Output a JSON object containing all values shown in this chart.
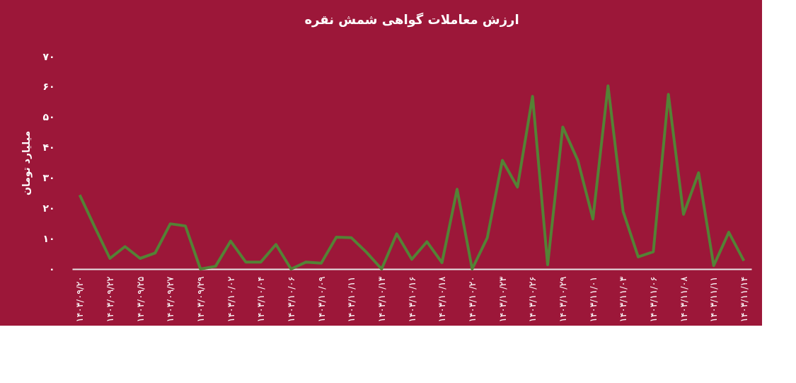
{
  "chart_data": {
    "type": "line",
    "title": "ارزش معاملات گواهی شمش نقره",
    "ylabel": "میلیارد تومان",
    "categories": [
      "۱۴۰۳/۰۹/۲۰",
      null,
      "۱۴۰۳/۰۹/۲۲",
      null,
      "۱۴۰۳/۰۹/۲۵",
      null,
      "۱۴۰۳/۰۹/۲۷",
      null,
      "۱۴۰۳/۰۹/۲۹",
      null,
      "۱۴۰۳/۱۰/۰۲",
      null,
      "۱۴۰۳/۱۰/۰۴",
      null,
      "۱۴۰۳/۱۰/۰۶",
      null,
      "۱۴۰۳/۱۰/۰۹",
      null,
      "۱۴۰۳/۱۰/۱۱",
      null,
      "۱۴۰۳/۱۰/۱۳",
      null,
      "۱۴۰۳/۱۰/۱۶",
      null,
      "۱۴۰۳/۱۰/۱۸",
      null,
      "۱۴۰۳/۱۰/۲۰",
      null,
      "۱۴۰۳/۱۰/۲۳",
      null,
      "۱۴۰۳/۱۰/۲۶",
      null,
      "۱۴۰۳/۱۰/۲۹",
      null,
      "۱۴۰۳/۱۱/۰۱",
      null,
      "۱۴۰۳/۱۱/۰۳",
      null,
      "۱۴۰۳/۱۱/۰۶",
      null,
      "۱۴۰۳/۱۱/۰۸",
      null,
      "۱۴۰۳/۱۱/۱۱",
      null,
      "۱۴۰۳/۱۱/۱۴"
    ],
    "series": [
      {
        "color": "#548235",
        "values": [
          24.4,
          13.8,
          3.5,
          7.4,
          3.5,
          5.3,
          14.9,
          14.2,
          0,
          0.9,
          9.2,
          2.3,
          2.3,
          8.1,
          0,
          2.3,
          1.9,
          10.5,
          10.3,
          5.5,
          0,
          11.6,
          3.2,
          9.0,
          2.1,
          26.3,
          0,
          10.3,
          35.8,
          27.0,
          56.9,
          1.4,
          46.8,
          35.8,
          16.5,
          60.4,
          19.0,
          4.0,
          5.7,
          57.6,
          18.0,
          31.7,
          1.1,
          12.1,
          2.7
        ]
      }
    ],
    "ylim": [
      0,
      70
    ],
    "yticks": [
      {
        "value": 0,
        "label": "۰"
      },
      {
        "value": 10,
        "label": "۱۰"
      },
      {
        "value": 20,
        "label": "۲۰"
      },
      {
        "value": 30,
        "label": "۳۰"
      },
      {
        "value": 40,
        "label": "۴۰"
      },
      {
        "value": 50,
        "label": "۵۰"
      },
      {
        "value": 60,
        "label": "۶۰"
      },
      {
        "value": 70,
        "label": "۷۰"
      }
    ],
    "grid": false,
    "marker": "none",
    "line_style": "solid"
  }
}
